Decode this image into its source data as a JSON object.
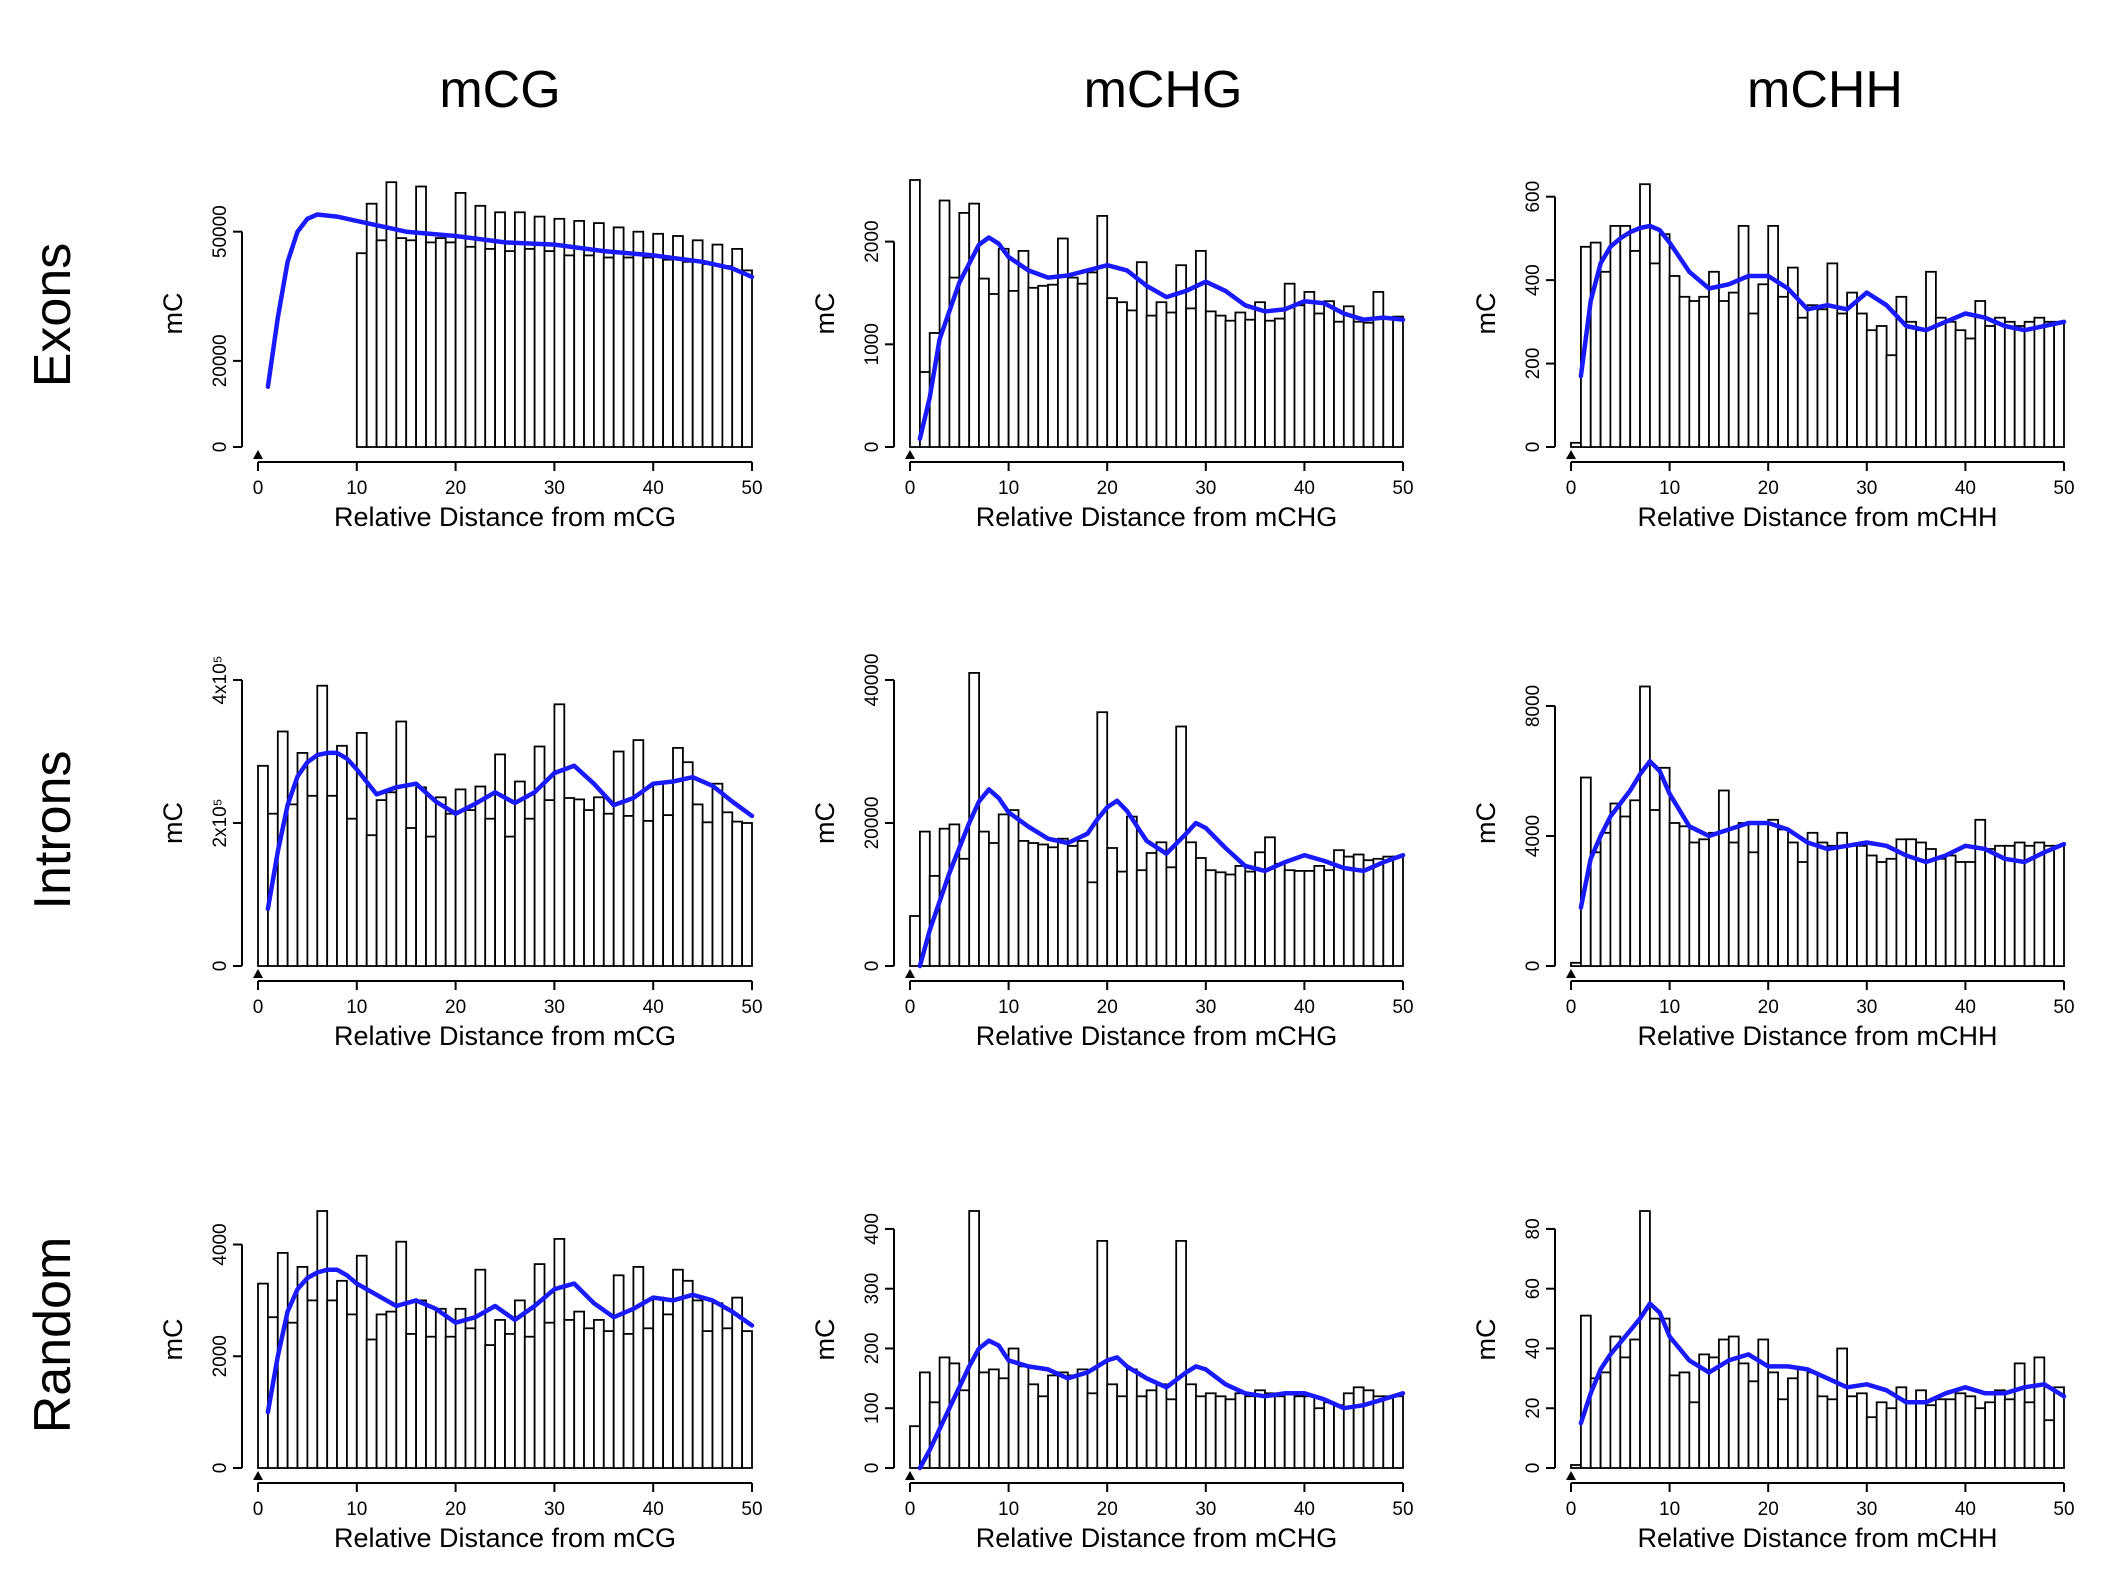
{
  "col_titles": [
    "mCG",
    "mCHG",
    "mCHH"
  ],
  "row_titles": [
    "Exons",
    "Introns",
    "Random"
  ],
  "colors": {
    "bar_stroke": "#000000",
    "bar_fill": "#ffffff",
    "smooth_line": "#1a1aff"
  },
  "chart_data": [
    {
      "type": "bar",
      "row": "Exons",
      "col": "mCG",
      "xlabel": "Relative Distance from mCG",
      "ylabel": "mC",
      "xlim": [
        0,
        50
      ],
      "ylim": [
        0,
        62000
      ],
      "x_ticks": [
        0,
        10,
        20,
        30,
        40,
        50
      ],
      "y_ticks": [
        0,
        20000,
        50000
      ],
      "y_tick_labels": [
        "0",
        "20000",
        "50000"
      ],
      "values": [
        45000,
        56500,
        48000,
        61500,
        48500,
        48000,
        60500,
        47500,
        48500,
        47500,
        59000,
        46500,
        56000,
        46000,
        54500,
        45500,
        54500,
        46000,
        53500,
        45500,
        53000,
        44500,
        52500,
        44500,
        52000,
        44000,
        51000,
        44000,
        50000,
        44000,
        49500,
        43500,
        49000,
        43000,
        48000,
        42500,
        47000,
        42000,
        46000,
        41000
      ],
      "smooth_x": [
        1,
        2,
        3,
        4,
        5,
        6,
        8,
        10,
        15,
        20,
        25,
        30,
        35,
        40,
        45,
        48,
        50
      ],
      "smooth": [
        14000,
        30000,
        43000,
        50000,
        53000,
        54000,
        53500,
        52500,
        50000,
        49000,
        47500,
        47000,
        45500,
        44500,
        43000,
        41500,
        39500
      ]
    },
    {
      "type": "bar",
      "row": "Exons",
      "col": "mCHG",
      "xlabel": "Relative Distance from mCHG",
      "ylabel": "mC",
      "xlim": [
        0,
        50
      ],
      "ylim": [
        0,
        2600
      ],
      "x_ticks": [
        0,
        10,
        20,
        30,
        40,
        50
      ],
      "y_ticks": [
        0,
        1000,
        2000
      ],
      "y_tick_labels": [
        "0",
        "1000",
        "2000"
      ],
      "values": [
        2600,
        730,
        1110,
        2400,
        1650,
        2280,
        2370,
        1640,
        1490,
        1930,
        1520,
        1910,
        1550,
        1570,
        1580,
        2030,
        1650,
        1590,
        1700,
        2250,
        1450,
        1410,
        1330,
        1800,
        1280,
        1410,
        1310,
        1770,
        1350,
        1910,
        1320,
        1280,
        1230,
        1310,
        1240,
        1410,
        1230,
        1250,
        1590,
        1380,
        1510,
        1300,
        1420,
        1220,
        1370,
        1220,
        1210,
        1510,
        1250,
        1270
      ],
      "smooth_x": [
        1,
        2,
        3,
        5,
        7,
        8,
        9,
        10,
        12,
        14,
        16,
        18,
        20,
        22,
        24,
        26,
        28,
        30,
        32,
        34,
        36,
        38,
        40,
        42,
        44,
        46,
        48,
        50
      ],
      "smooth": [
        80,
        480,
        1050,
        1600,
        1970,
        2040,
        1980,
        1850,
        1720,
        1650,
        1670,
        1720,
        1770,
        1720,
        1570,
        1460,
        1520,
        1610,
        1520,
        1380,
        1320,
        1340,
        1420,
        1400,
        1300,
        1240,
        1260,
        1240
      ]
    },
    {
      "type": "bar",
      "row": "Exons",
      "col": "mCHH",
      "xlabel": "Relative Distance from mCHH",
      "ylabel": "mC",
      "xlim": [
        0,
        50
      ],
      "ylim": [
        0,
        640
      ],
      "x_ticks": [
        0,
        10,
        20,
        30,
        40,
        50
      ],
      "y_ticks": [
        0,
        200,
        400,
        600
      ],
      "y_tick_labels": [
        "0",
        "200",
        "400",
        "600"
      ],
      "values": [
        10,
        480,
        490,
        420,
        530,
        530,
        470,
        630,
        440,
        510,
        410,
        360,
        350,
        360,
        420,
        350,
        370,
        530,
        320,
        390,
        530,
        360,
        430,
        310,
        340,
        330,
        440,
        320,
        370,
        320,
        280,
        290,
        220,
        360,
        300,
        280,
        420,
        310,
        300,
        280,
        260,
        350,
        290,
        310,
        300,
        290,
        300,
        310,
        300,
        300
      ],
      "smooth_x": [
        1,
        2,
        3,
        4,
        5,
        6,
        7,
        8,
        9,
        10,
        12,
        14,
        16,
        18,
        20,
        22,
        24,
        26,
        28,
        30,
        32,
        34,
        36,
        38,
        40,
        42,
        44,
        46,
        48,
        50
      ],
      "smooth": [
        170,
        350,
        440,
        480,
        500,
        515,
        525,
        530,
        520,
        490,
        420,
        380,
        390,
        410,
        410,
        380,
        330,
        340,
        330,
        370,
        340,
        290,
        280,
        300,
        320,
        310,
        290,
        280,
        290,
        300
      ]
    },
    {
      "type": "bar",
      "row": "Introns",
      "col": "mCG",
      "xlabel": "Relative Distance from mCG",
      "ylabel": "mC",
      "xlim": [
        0,
        50
      ],
      "ylim": [
        0,
        400000
      ],
      "x_ticks": [
        0,
        10,
        20,
        30,
        40,
        50
      ],
      "y_ticks": [
        0,
        200000,
        400000
      ],
      "y_tick_labels": [
        "0",
        "2x10⁵",
        "4x10⁵"
      ],
      "values": [
        280000,
        213000,
        328000,
        226000,
        298000,
        238000,
        392000,
        238000,
        308000,
        206000,
        326000,
        183000,
        232000,
        243000,
        342000,
        193000,
        250000,
        181000,
        236000,
        213000,
        247000,
        218000,
        251000,
        206000,
        296000,
        181000,
        258000,
        206000,
        307000,
        232000,
        366000,
        235000,
        233000,
        218000,
        236000,
        213000,
        300000,
        210000,
        316000,
        203000,
        255000,
        211000,
        305000,
        285000,
        226000,
        201000,
        255000,
        215000,
        202000,
        200000
      ],
      "smooth_x": [
        1,
        2,
        3,
        4,
        5,
        6,
        7,
        8,
        9,
        10,
        12,
        14,
        16,
        18,
        20,
        22,
        24,
        26,
        28,
        30,
        32,
        34,
        36,
        38,
        40,
        42,
        44,
        46,
        48,
        50
      ],
      "smooth": [
        80000,
        160000,
        225000,
        265000,
        285000,
        295000,
        298000,
        298000,
        290000,
        275000,
        240000,
        250000,
        255000,
        230000,
        213000,
        227000,
        243000,
        228000,
        243000,
        270000,
        280000,
        255000,
        225000,
        235000,
        255000,
        258000,
        264000,
        252000,
        230000,
        210000
      ]
    },
    {
      "type": "bar",
      "row": "Introns",
      "col": "mCHG",
      "xlabel": "Relative Distance from mCHG",
      "ylabel": "mC",
      "xlim": [
        0,
        50
      ],
      "ylim": [
        0,
        40000
      ],
      "x_ticks": [
        0,
        10,
        20,
        30,
        40,
        50
      ],
      "y_ticks": [
        0,
        20000,
        40000
      ],
      "y_tick_labels": [
        "0",
        "20000",
        "40000"
      ],
      "values": [
        7000,
        18800,
        12600,
        19200,
        19800,
        15000,
        41000,
        18800,
        17200,
        21200,
        21800,
        17500,
        17200,
        17000,
        16600,
        17800,
        16800,
        17500,
        11700,
        35500,
        16500,
        13200,
        20900,
        13400,
        15800,
        17300,
        13800,
        33500,
        17300,
        15100,
        13400,
        13100,
        12800,
        14000,
        13200,
        15900,
        18000,
        14300,
        13400,
        13300,
        13300,
        14000,
        13400,
        16200,
        15300,
        15600,
        14800,
        15000,
        15300,
        15300
      ],
      "smooth_x": [
        1,
        2,
        4,
        6,
        7,
        8,
        9,
        10,
        12,
        14,
        16,
        18,
        19,
        20,
        21,
        22,
        24,
        26,
        28,
        29,
        30,
        32,
        34,
        36,
        38,
        40,
        42,
        44,
        46,
        48,
        50
      ],
      "smooth": [
        0,
        5000,
        13000,
        20000,
        23000,
        24700,
        23500,
        21500,
        19500,
        17800,
        17200,
        18500,
        20500,
        22200,
        23100,
        21700,
        17500,
        15700,
        18500,
        20000,
        19300,
        16500,
        14000,
        13300,
        14500,
        15500,
        14700,
        13700,
        13300,
        14500,
        15500
      ]
    },
    {
      "type": "bar",
      "row": "Introns",
      "col": "mCHH",
      "xlabel": "Relative Distance from mCHH",
      "ylabel": "mC",
      "xlim": [
        0,
        50
      ],
      "ylim": [
        0,
        8800
      ],
      "x_ticks": [
        0,
        10,
        20,
        30,
        40,
        50
      ],
      "y_ticks": [
        0,
        4000,
        8000
      ],
      "y_tick_labels": [
        "0",
        "4000",
        "8000"
      ],
      "values": [
        100,
        5800,
        3500,
        4100,
        5000,
        4600,
        5100,
        8600,
        4800,
        6100,
        4400,
        4300,
        3800,
        3900,
        4100,
        5400,
        3800,
        4400,
        3500,
        4400,
        4500,
        4200,
        3800,
        3200,
        4100,
        3800,
        3700,
        4100,
        3700,
        3700,
        3400,
        3200,
        3300,
        3900,
        3900,
        3800,
        3600,
        3300,
        3400,
        3200,
        3200,
        4500,
        3600,
        3700,
        3700,
        3800,
        3700,
        3800,
        3700,
        3700
      ],
      "smooth_x": [
        1,
        2,
        3,
        4,
        5,
        6,
        7,
        8,
        9,
        10,
        12,
        14,
        16,
        18,
        20,
        22,
        24,
        26,
        28,
        30,
        32,
        34,
        36,
        38,
        40,
        42,
        44,
        46,
        48,
        50
      ],
      "smooth": [
        1800,
        3300,
        4000,
        4600,
        5000,
        5400,
        5900,
        6300,
        6000,
        5300,
        4300,
        4000,
        4200,
        4400,
        4400,
        4200,
        3800,
        3600,
        3700,
        3800,
        3700,
        3400,
        3200,
        3400,
        3700,
        3600,
        3300,
        3200,
        3500,
        3750
      ]
    },
    {
      "type": "bar",
      "row": "Random",
      "col": "mCG",
      "xlabel": "Relative Distance from mCG",
      "ylabel": "mC",
      "xlim": [
        0,
        50
      ],
      "ylim": [
        0,
        4600
      ],
      "x_ticks": [
        0,
        10,
        20,
        30,
        40,
        50
      ],
      "y_ticks": [
        0,
        2000,
        4000
      ],
      "y_tick_labels": [
        "0",
        "2000",
        "4000"
      ],
      "values": [
        3300,
        2700,
        3850,
        2600,
        3600,
        3000,
        4600,
        3000,
        3350,
        2750,
        3800,
        2300,
        2750,
        2800,
        4050,
        2400,
        3000,
        2350,
        2850,
        2350,
        2850,
        2500,
        3550,
        2200,
        2650,
        2400,
        3000,
        2350,
        3650,
        2600,
        4100,
        2650,
        2800,
        2500,
        2650,
        2450,
        3450,
        2400,
        3600,
        2500,
        3050,
        2750,
        3550,
        3350,
        3000,
        2450,
        2950,
        2500,
        3050,
        2450
      ],
      "smooth_x": [
        1,
        2,
        3,
        4,
        5,
        6,
        7,
        8,
        9,
        10,
        12,
        14,
        16,
        18,
        20,
        22,
        24,
        26,
        28,
        30,
        32,
        34,
        36,
        38,
        40,
        42,
        44,
        46,
        48,
        50
      ],
      "smooth": [
        1000,
        2000,
        2800,
        3200,
        3400,
        3500,
        3550,
        3550,
        3450,
        3300,
        3100,
        2900,
        3000,
        2850,
        2600,
        2700,
        2900,
        2650,
        2900,
        3200,
        3300,
        2950,
        2700,
        2850,
        3050,
        3000,
        3100,
        3000,
        2800,
        2550
      ]
    },
    {
      "type": "bar",
      "row": "Random",
      "col": "mCHG",
      "xlabel": "Relative Distance from mCHG",
      "ylabel": "mC",
      "xlim": [
        0,
        50
      ],
      "ylim": [
        0,
        430
      ],
      "x_ticks": [
        0,
        10,
        20,
        30,
        40,
        50
      ],
      "y_ticks": [
        0,
        100,
        200,
        300,
        400
      ],
      "y_tick_labels": [
        "0",
        "100",
        "200",
        "300",
        "400"
      ],
      "values": [
        70,
        160,
        110,
        185,
        175,
        130,
        430,
        160,
        165,
        150,
        200,
        170,
        140,
        120,
        155,
        160,
        155,
        165,
        125,
        380,
        140,
        120,
        165,
        120,
        130,
        140,
        115,
        380,
        140,
        120,
        125,
        120,
        115,
        125,
        120,
        130,
        125,
        120,
        125,
        120,
        120,
        100,
        110,
        105,
        125,
        135,
        130,
        120,
        120,
        120
      ],
      "smooth_x": [
        1,
        2,
        4,
        6,
        7,
        8,
        9,
        10,
        12,
        14,
        16,
        18,
        19,
        20,
        21,
        22,
        24,
        26,
        28,
        29,
        30,
        32,
        34,
        36,
        38,
        40,
        42,
        44,
        46,
        48,
        50
      ],
      "smooth": [
        0,
        30,
        100,
        170,
        200,
        213,
        205,
        180,
        170,
        165,
        150,
        160,
        170,
        180,
        185,
        170,
        150,
        135,
        160,
        170,
        165,
        140,
        125,
        120,
        125,
        125,
        115,
        100,
        105,
        115,
        125
      ]
    },
    {
      "type": "bar",
      "row": "Random",
      "col": "mCHH",
      "xlabel": "Relative Distance from mCHH",
      "ylabel": "mC",
      "xlim": [
        0,
        50
      ],
      "ylim": [
        0,
        86
      ],
      "x_ticks": [
        0,
        10,
        20,
        30,
        40,
        50
      ],
      "y_ticks": [
        0,
        20,
        40,
        60,
        80
      ],
      "y_tick_labels": [
        "0",
        "20",
        "40",
        "60",
        "80"
      ],
      "values": [
        1,
        51,
        30,
        32,
        44,
        37,
        43,
        86,
        50,
        50,
        31,
        32,
        22,
        38,
        37,
        43,
        44,
        35,
        29,
        43,
        32,
        23,
        30,
        33,
        32,
        24,
        23,
        40,
        24,
        25,
        17,
        22,
        20,
        27,
        22,
        26,
        21,
        23,
        23,
        25,
        24,
        20,
        22,
        26,
        23,
        35,
        22,
        37,
        16,
        27
      ],
      "smooth_x": [
        1,
        2,
        3,
        4,
        5,
        6,
        7,
        8,
        9,
        10,
        12,
        14,
        16,
        18,
        20,
        22,
        24,
        26,
        28,
        30,
        32,
        34,
        36,
        38,
        40,
        42,
        44,
        46,
        48,
        50
      ],
      "smooth": [
        15,
        25,
        33,
        38,
        42,
        46,
        50,
        55,
        52,
        44,
        36,
        32,
        36,
        38,
        34,
        34,
        33,
        30,
        27,
        28,
        26,
        22,
        22,
        25,
        27,
        25,
        25,
        27,
        28,
        24
      ]
    }
  ]
}
